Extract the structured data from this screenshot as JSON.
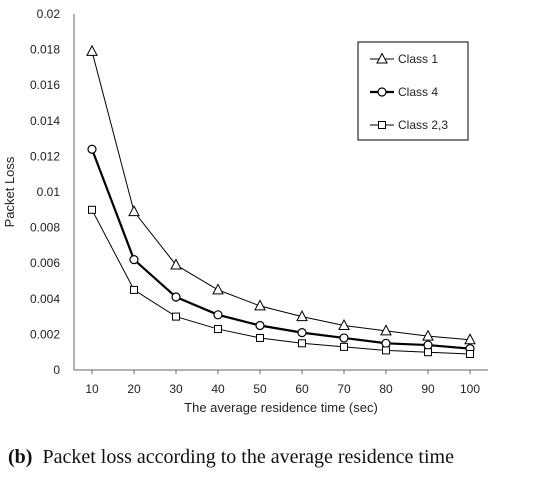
{
  "chart_data": {
    "type": "line",
    "xlabel": "The average residence time (sec)",
    "ylabel": "Packet Loss",
    "x": [
      10,
      20,
      30,
      40,
      50,
      60,
      70,
      80,
      90,
      100
    ],
    "ylim": [
      0,
      0.02
    ],
    "yticks": [
      "0",
      "0.002",
      "0.004",
      "0.006",
      "0.008",
      "0.01",
      "0.012",
      "0.014",
      "0.016",
      "0.018",
      "0.02"
    ],
    "grid": false,
    "legend_position": "top-right",
    "series": [
      {
        "name": "Class 1",
        "marker": "triangle",
        "values": [
          0.0179,
          0.0089,
          0.0059,
          0.0045,
          0.0036,
          0.003,
          0.0025,
          0.0022,
          0.0019,
          0.0017
        ],
        "color": "#000000"
      },
      {
        "name": "Class 4",
        "marker": "circle",
        "values": [
          0.0124,
          0.0062,
          0.0041,
          0.0031,
          0.0025,
          0.0021,
          0.0018,
          0.0015,
          0.0014,
          0.0012
        ],
        "color": "#000000"
      },
      {
        "name": "Class 2,3",
        "marker": "square",
        "values": [
          0.009,
          0.0045,
          0.003,
          0.0023,
          0.0018,
          0.0015,
          0.0013,
          0.0011,
          0.001,
          0.0009
        ],
        "color": "#000000"
      }
    ]
  },
  "caption": {
    "label": "(b)",
    "text": "Packet loss according to the average residence time"
  }
}
